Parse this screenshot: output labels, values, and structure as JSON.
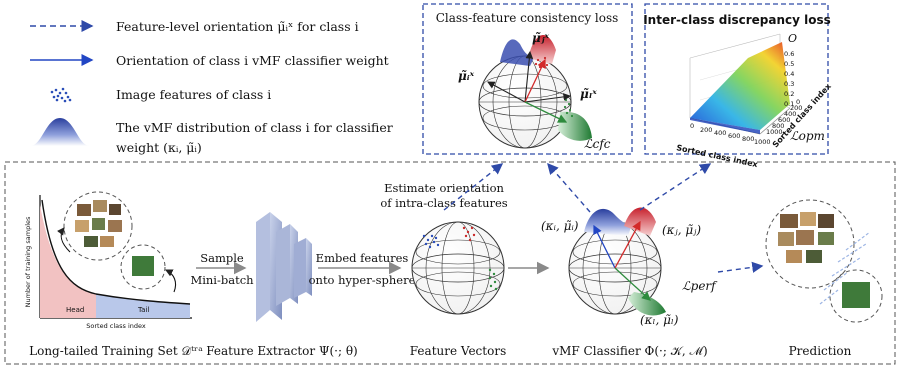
{
  "legend": {
    "feature_orientation": "Feature-level orientation μ̃ᵢˣ for class i",
    "classifier_orientation": "Orientation of class i vMF classifier weight",
    "image_features": "Image features of class i",
    "vmf_distribution": "The vMF distribution of class i for classifier",
    "vmf_distribution_2": "weight (κᵢ, μ̃ᵢ)"
  },
  "cfc_panel": {
    "title": "Class-feature consistency loss",
    "label_j": "μ̃ⱼˣ",
    "label_i": "μ̃ᵢˣ",
    "label_l": "μ̃ₗˣ",
    "loss": "ℒcfc"
  },
  "opm_panel": {
    "title": "Inter-class discrepancy loss",
    "z_label": "O",
    "z_ticks": [
      "0.6",
      "0.5",
      "0.4",
      "0.3",
      "0.2",
      "0.1"
    ],
    "x_label": "Sorted class index",
    "y_label": "Sorted class index",
    "x_ticks": [
      "0",
      "200",
      "400",
      "600",
      "800",
      "1000"
    ],
    "y_ticks": [
      "1000",
      "800",
      "600",
      "400",
      "200",
      "0"
    ],
    "loss": "ℒopm"
  },
  "pipeline": {
    "training_set": {
      "caption": "Long-tailed Training Set 𝒟ᵗʳᵃ",
      "ylabel": "Number of training samples",
      "xlabel": "Sorted class index",
      "head": "Head",
      "tail": "Tail"
    },
    "sample_label_1": "Sample",
    "sample_label_2": "Mini-batch",
    "extractor_caption": "Feature Extractor Ψ(·; θ)",
    "embed_label_1": "Embed features",
    "embed_label_2": "onto hyper-sphere",
    "estimate_label_1": "Estimate orientation",
    "estimate_label_2": "of intra-class features",
    "feature_vectors_caption": "Feature Vectors",
    "classifier": {
      "caption": "vMF Classifier Φ(·; 𝒦, ℳ)",
      "kappa_i": "(κᵢ, μ̃ᵢ)",
      "kappa_j": "(κⱼ, μ̃ⱼ)",
      "kappa_l": "(κₗ, μ̃ₗ)",
      "loss": "ℒperf"
    },
    "prediction_caption": "Prediction"
  },
  "colors": {
    "dashed_blue": "#2f4aa8",
    "red": "#d32a2a",
    "green": "#2e8b3d",
    "blue": "#2246c4",
    "head": "#f2c2c2",
    "tail": "#b9c8ea"
  }
}
